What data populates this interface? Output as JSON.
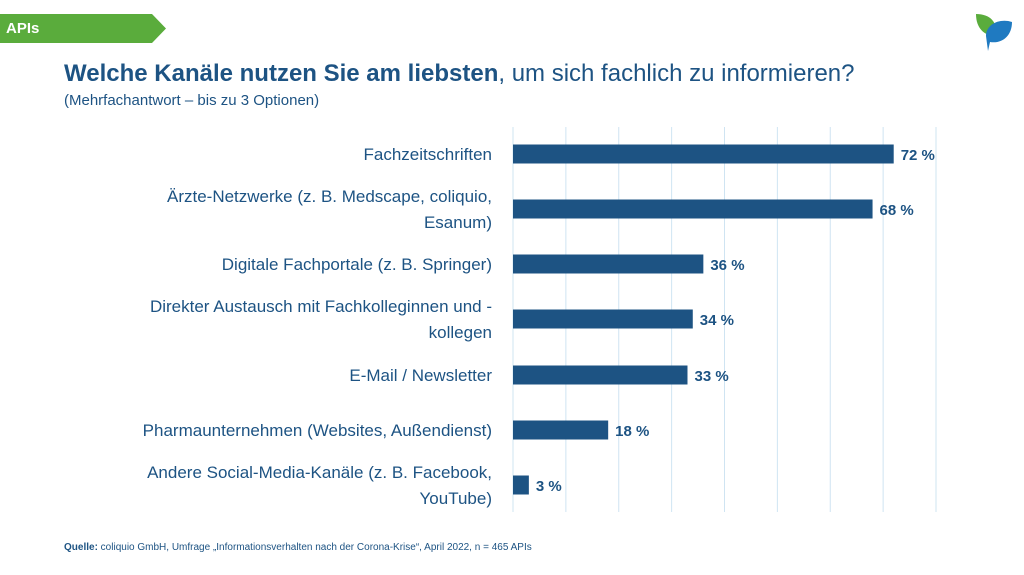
{
  "header": {
    "tag_label": "APIs",
    "title_bold": "Welche Kanäle nutzen Sie am liebsten",
    "title_rest": ", um sich fachlich zu informieren?",
    "subtitle": "(Mehrfachantwort – bis zu 3 Optionen)"
  },
  "footer": {
    "source_label": "Quelle:",
    "source_text": " coliquio GmbH, Umfrage „Informationsverhalten nach der Corona-Krise“, April 2022, n = 465 APIs"
  },
  "colors": {
    "bar": "#1d5383",
    "label": "#1d5383",
    "grid": "#cfe4f2",
    "tag": "#5aac3c",
    "logo_green": "#5aac3c",
    "logo_blue": "#1f7ac1"
  },
  "logo_icon": "leaf-logo-icon",
  "chart_data": {
    "type": "bar",
    "orientation": "horizontal",
    "categories": [
      [
        "Fachzeitschriften"
      ],
      [
        "Ärzte-Netzwerke (z. B. Medscape, coliquio,",
        "Esanum)"
      ],
      [
        "Digitale Fachportale (z. B. Springer)"
      ],
      [
        "Direkter Austausch mit Fachkolleginnen und -",
        "kollegen"
      ],
      [
        "E-Mail / Newsletter"
      ],
      [
        "Pharmaunternehmen (Websites, Außendienst)"
      ],
      [
        "Andere Social-Media-Kanäle (z. B. Facebook,",
        "YouTube)"
      ]
    ],
    "values": [
      72,
      68,
      36,
      34,
      33,
      18,
      3
    ],
    "value_labels": [
      "72 %",
      "68 %",
      "36 %",
      "34 %",
      "33 %",
      "18 %",
      "3 %"
    ],
    "xlim": [
      0,
      80
    ],
    "grid": true,
    "legend": "none"
  }
}
